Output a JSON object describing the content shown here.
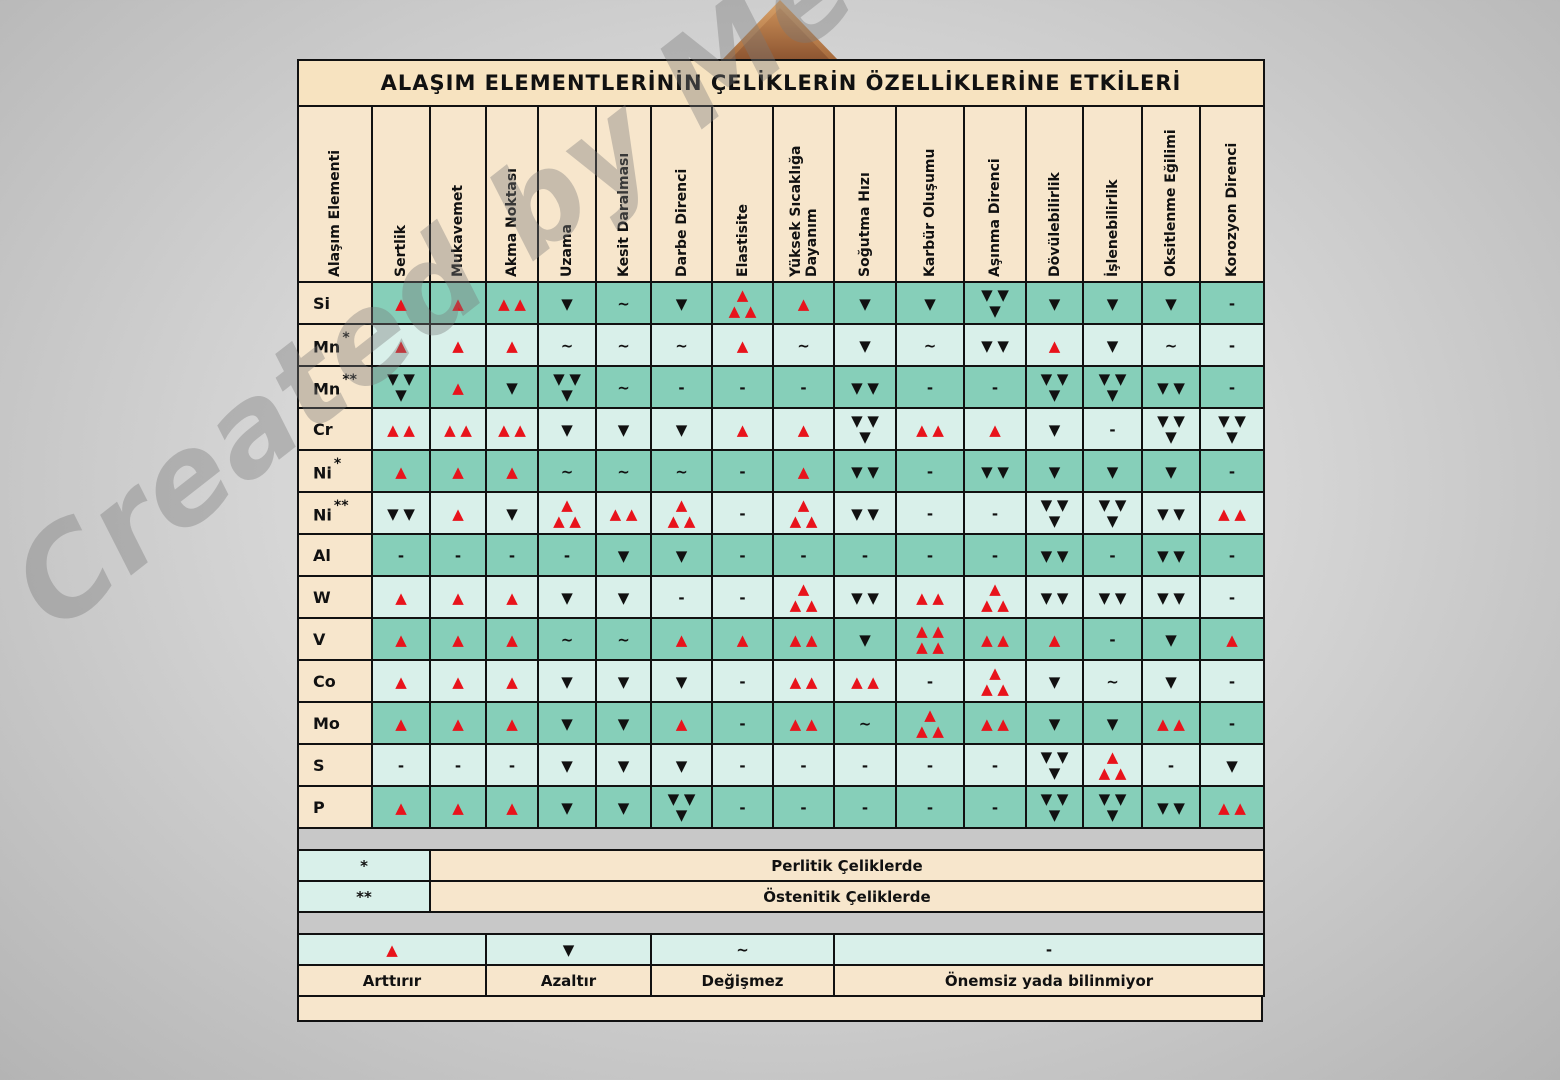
{
  "title": "ALAŞIM ELEMENTLERİNİN ÇELİKLERİN ÖZELLİKLERİNE ETKİLERİ",
  "columns": [
    "Alaşım Elementi",
    "Sertlik",
    "Mukavemet",
    "Akma Noktası",
    "Uzama",
    "Kesit Daralması",
    "Darbe Direnci",
    "Elastisite",
    "Yüksek Sıcaklığa Dayanım",
    "Soğutma Hızı",
    "Karbür Oluşumu",
    "Aşınma Direnci",
    "Dövülebilirlik",
    "İşlenebilirlik",
    "Oksitlenme Eğilimi",
    "Korozyon Direnci"
  ],
  "column_line2": {
    "8": "Dayanım"
  },
  "rows": [
    {
      "el": "Si",
      "mark": "",
      "cells": [
        "u1",
        "u1",
        "u2",
        "d1",
        "~",
        "d1",
        "u3",
        "u1",
        "d1",
        "d1",
        "d3",
        "d1",
        "d1",
        "d1",
        "-"
      ]
    },
    {
      "el": "Mn",
      "mark": "*",
      "cells": [
        "u1",
        "u1",
        "u1",
        "~",
        "~",
        "~",
        "u1",
        "~",
        "d1",
        "~",
        "d2",
        "u1",
        "d1",
        "~",
        "-"
      ]
    },
    {
      "el": "Mn",
      "mark": "**",
      "cells": [
        "d3",
        "u1",
        "d1",
        "d3",
        "~",
        "-",
        "-",
        "-",
        "d2",
        "-",
        "-",
        "d3",
        "d3",
        "d2",
        "-"
      ]
    },
    {
      "el": "Cr",
      "mark": "",
      "cells": [
        "u2",
        "u2",
        "u2",
        "d1",
        "d1",
        "d1",
        "u1",
        "u1",
        "d3",
        "u2",
        "u1",
        "d1",
        "-",
        "d3",
        "d3"
      ]
    },
    {
      "el": "Ni",
      "mark": "*",
      "cells": [
        "u1",
        "u1",
        "u1",
        "~",
        "~",
        "~",
        "-",
        "u1",
        "d2",
        "-",
        "d2",
        "d1",
        "d1",
        "d1",
        "-"
      ]
    },
    {
      "el": "Ni",
      "mark": "**",
      "cells": [
        "d2",
        "u1",
        "d1",
        "u3",
        "u2",
        "u3",
        "-",
        "u3",
        "d2",
        "-",
        "-",
        "d3",
        "d3",
        "d2",
        "u2"
      ]
    },
    {
      "el": "Al",
      "mark": "",
      "cells": [
        "-",
        "-",
        "-",
        "-",
        "d1",
        "d1",
        "-",
        "-",
        "-",
        "-",
        "-",
        "d2",
        "-",
        "d2",
        "-"
      ]
    },
    {
      "el": "W",
      "mark": "",
      "cells": [
        "u1",
        "u1",
        "u1",
        "d1",
        "d1",
        "-",
        "-",
        "u3",
        "d2",
        "u2",
        "u3",
        "d2",
        "d2",
        "d2",
        "-"
      ]
    },
    {
      "el": "V",
      "mark": "",
      "cells": [
        "u1",
        "u1",
        "u1",
        "~",
        "~",
        "u1",
        "u1",
        "u2",
        "d1",
        "u4",
        "u2",
        "u1",
        "-",
        "d1",
        "u1"
      ]
    },
    {
      "el": "Co",
      "mark": "",
      "cells": [
        "u1",
        "u1",
        "u1",
        "d1",
        "d1",
        "d1",
        "-",
        "u2",
        "u2",
        "-",
        "u3",
        "d1",
        "~",
        "d1",
        "-"
      ]
    },
    {
      "el": "Mo",
      "mark": "",
      "cells": [
        "u1",
        "u1",
        "u1",
        "d1",
        "d1",
        "u1",
        "-",
        "u2",
        "~",
        "u3",
        "u2",
        "d1",
        "d1",
        "u2",
        "-"
      ]
    },
    {
      "el": "S",
      "mark": "",
      "cells": [
        "-",
        "-",
        "-",
        "d1",
        "d1",
        "d1",
        "-",
        "-",
        "-",
        "-",
        "-",
        "d3",
        "u3",
        "-",
        "d1"
      ]
    },
    {
      "el": "P",
      "mark": "",
      "cells": [
        "u1",
        "u1",
        "u1",
        "d1",
        "d1",
        "d3",
        "-",
        "-",
        "-",
        "-",
        "-",
        "d3",
        "d3",
        "d2",
        "u2"
      ]
    }
  ],
  "notes": [
    {
      "key": "*",
      "text": "Perlitik Çeliklerde"
    },
    {
      "key": "**",
      "text": "Östenitik Çeliklerde"
    }
  ],
  "legend": {
    "symbols": [
      "▲",
      "▼",
      "~",
      "-"
    ],
    "labels": [
      "Arttırır",
      "Azaltır",
      "Değişmez",
      "Önemsiz yada bilinmiyor"
    ]
  },
  "symbols": {
    "up": "▲",
    "down": "▼",
    "same": "~",
    "none": "-"
  },
  "watermark": "Created by Mech x Engx Caglar",
  "colors": {
    "dark_row": "#86cfb9",
    "light_row": "#d9f0ea",
    "beige": "#f7e6cc",
    "up": "#e8131b",
    "down": "#111111"
  }
}
